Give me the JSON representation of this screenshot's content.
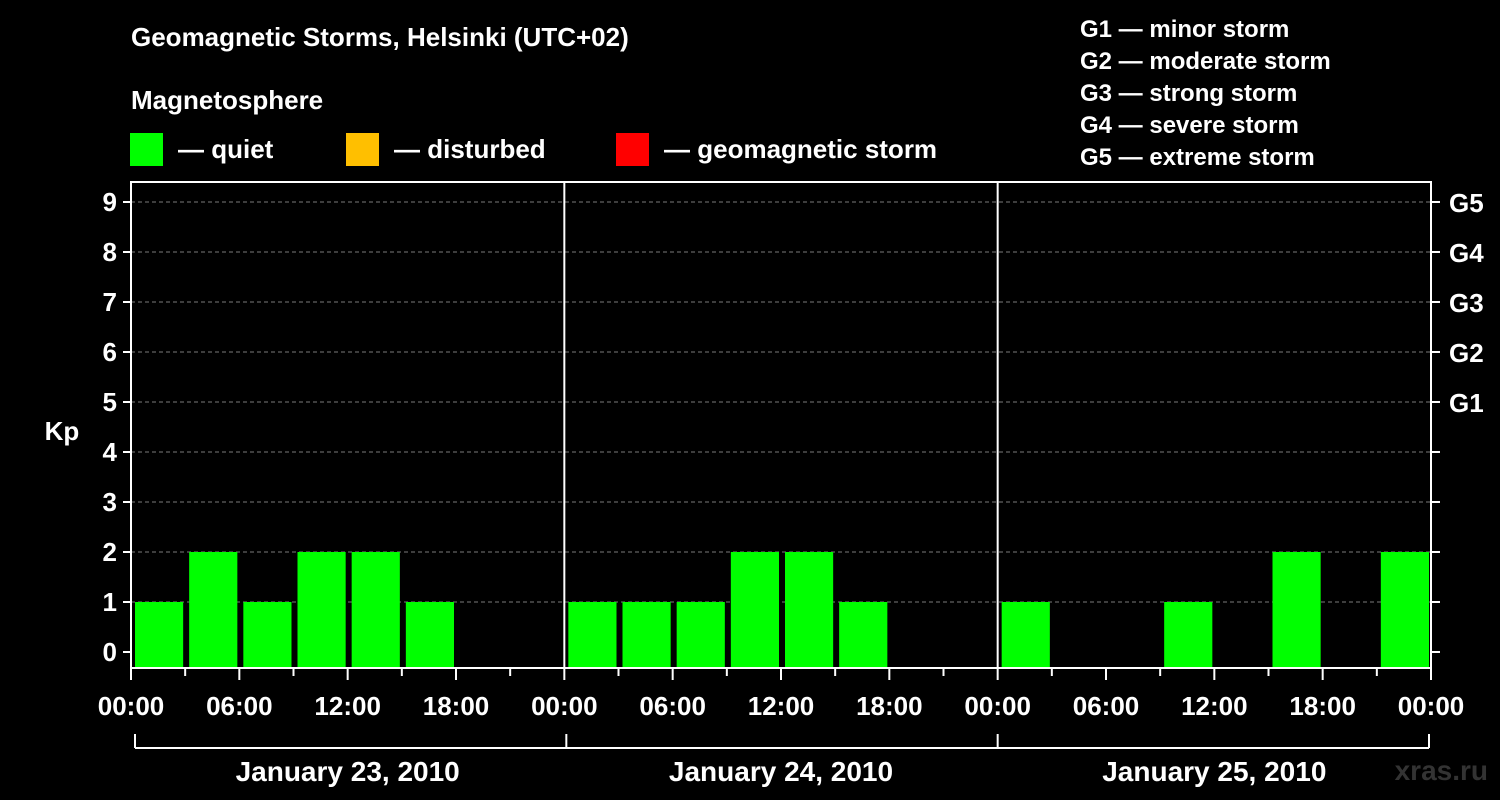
{
  "title": "Geomagnetic Storms, Helsinki (UTC+02)",
  "subtitle": "Magnetosphere",
  "legend": [
    {
      "color": "#00ff00",
      "label": "— quiet"
    },
    {
      "color": "#ffbf00",
      "label": "— disturbed"
    },
    {
      "color": "#ff0000",
      "label": "— geomagnetic storm"
    }
  ],
  "storm_scale": [
    "G1 — minor storm",
    "G2 — moderate storm",
    "G3 — strong storm",
    "G4 — severe storm",
    "G5 — extreme storm"
  ],
  "watermark": "xras.ru",
  "chart_data": {
    "type": "bar",
    "ylabel": "Kp",
    "ylim": [
      0,
      9
    ],
    "yticks": [
      "0",
      "1",
      "2",
      "3",
      "4",
      "5",
      "6",
      "7",
      "8",
      "9"
    ],
    "right_ticks": [
      {
        "value": 5,
        "label": "G1"
      },
      {
        "value": 6,
        "label": "G2"
      },
      {
        "value": 7,
        "label": "G3"
      },
      {
        "value": 8,
        "label": "G4"
      },
      {
        "value": 9,
        "label": "G5"
      }
    ],
    "xtick_labels": [
      "00:00",
      "06:00",
      "12:00",
      "18:00",
      "00:00",
      "06:00",
      "12:00",
      "18:00",
      "00:00",
      "06:00",
      "12:00",
      "18:00",
      "00:00"
    ],
    "days": [
      "January 23, 2010",
      "January 24, 2010",
      "January 25, 2010"
    ],
    "interval_hours": 3,
    "grid": "horizontal dashed",
    "series": [
      {
        "values": [
          1,
          2,
          1,
          2,
          2,
          1,
          0,
          0,
          1,
          1,
          1,
          2,
          2,
          1,
          0,
          0,
          1,
          0,
          0,
          1,
          0,
          2,
          0,
          2
        ],
        "color": "#00ff00"
      }
    ]
  }
}
